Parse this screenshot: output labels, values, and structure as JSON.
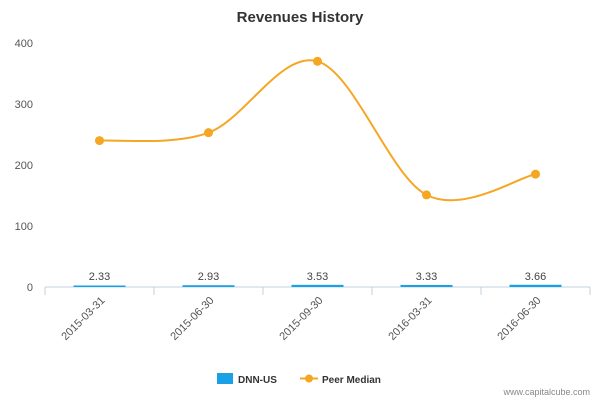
{
  "chart_data": {
    "type": "bar+line",
    "title": "Revenues History",
    "xlabel": "",
    "ylabel": "",
    "ylim": [
      0,
      400
    ],
    "yticks": [
      0,
      100,
      200,
      300,
      400
    ],
    "categories": [
      "2015-03-31",
      "2015-06-30",
      "2015-09-30",
      "2016-03-31",
      "2016-06-30"
    ],
    "series": [
      {
        "name": "DNN-US",
        "kind": "bar",
        "color": "#1aa0e6",
        "values": [
          2.33,
          2.93,
          3.53,
          3.33,
          3.66
        ],
        "labels": [
          "2.33",
          "2.93",
          "3.53",
          "3.33",
          "3.66"
        ]
      },
      {
        "name": "Peer Median",
        "kind": "line",
        "color": "#f5a623",
        "values": [
          240,
          253,
          370,
          151,
          185
        ]
      }
    ],
    "grid": false,
    "legend": "bottom-center"
  },
  "credit": "www.capitalcube.com"
}
